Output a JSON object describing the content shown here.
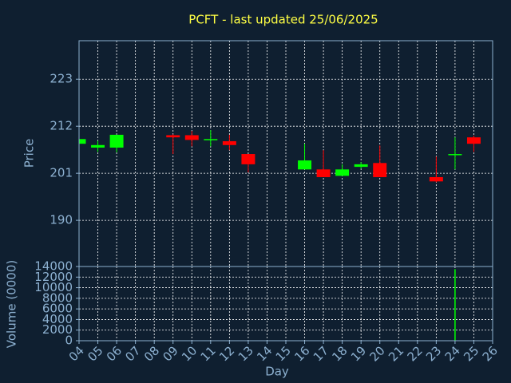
{
  "chart_data": [
    {
      "type": "candlestick",
      "title": "PCFT - last updated 25/06/2025",
      "ylabel": "Price",
      "x": [
        4,
        5,
        6,
        9,
        10,
        11,
        12,
        13,
        16,
        17,
        18,
        19,
        20,
        23,
        24,
        25
      ],
      "open": [
        207.9,
        207.0,
        207.0,
        209.9,
        209.9,
        208.8,
        208.5,
        205.5,
        201.9,
        201.9,
        200.4,
        202.5,
        203.4,
        200.1,
        205.3,
        209.4
      ],
      "high": [
        209.1,
        208.6,
        210.0,
        210.1,
        210.9,
        211.1,
        210.0,
        205.5,
        207.9,
        206.4,
        203.1,
        203.6,
        207.5,
        204.9,
        209.4,
        209.8
      ],
      "low": [
        207.8,
        206.0,
        205.9,
        205.5,
        207.3,
        207.3,
        206.4,
        201.2,
        201.9,
        200.1,
        200.4,
        202.1,
        200.1,
        198.9,
        201.9,
        206.0
      ],
      "close": [
        209.0,
        207.6,
        210.0,
        209.4,
        208.8,
        209.0,
        207.6,
        203.1,
        204.0,
        200.1,
        201.9,
        203.1,
        200.1,
        199.1,
        205.5,
        207.9
      ],
      "up_color": "#00ff00",
      "down_color": "#ff0000",
      "xlim": [
        4,
        26
      ],
      "ylim": [
        179.2,
        232
      ],
      "yticks": [
        190,
        201,
        212,
        223
      ],
      "grid": true
    },
    {
      "type": "bar",
      "xlabel": "Day",
      "ylabel": "Volume (0000)",
      "x": [
        4,
        5,
        6,
        9,
        10,
        11,
        12,
        13,
        16,
        17,
        18,
        19,
        20,
        23,
        24,
        25
      ],
      "values": [
        0,
        0,
        0,
        0,
        0,
        0,
        0,
        0,
        0,
        0,
        0,
        0,
        0,
        0,
        13500,
        0
      ],
      "color": "#00ff00",
      "xlim": [
        4,
        26
      ],
      "xticks": [
        {
          "value": 4,
          "label": "04"
        },
        {
          "value": 5,
          "label": "05"
        },
        {
          "value": 6,
          "label": "06"
        },
        {
          "value": 7,
          "label": "07"
        },
        {
          "value": 8,
          "label": "08"
        },
        {
          "value": 9,
          "label": "09"
        },
        10,
        11,
        12,
        13,
        14,
        15,
        16,
        17,
        18,
        19,
        20,
        21,
        22,
        23,
        24,
        25,
        26
      ],
      "ylim": [
        0,
        14000
      ],
      "yticks": [
        0,
        2000,
        4000,
        6000,
        8000,
        10000,
        12000,
        14000
      ],
      "grid": true
    }
  ]
}
